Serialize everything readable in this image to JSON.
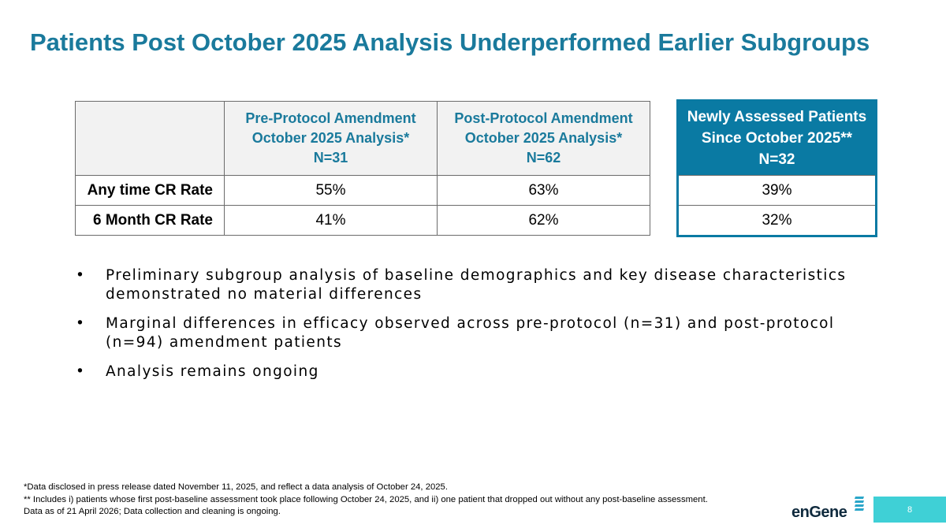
{
  "title": "Patients Post October 2025 Analysis Underperformed Earlier Subgroups",
  "main_table": {
    "headers": [
      {
        "lines": [
          "Pre-Protocol Amendment",
          "October 2025 Analysis*",
          "N=31"
        ]
      },
      {
        "lines": [
          "Post-Protocol Amendment",
          "October 2025 Analysis*",
          "N=62"
        ]
      }
    ],
    "rows": [
      {
        "label": "Any time CR Rate",
        "values": [
          "55%",
          "63%"
        ]
      },
      {
        "label": "6 Month CR Rate",
        "values": [
          "41%",
          "62%"
        ]
      }
    ]
  },
  "side_table": {
    "header_lines": [
      "Newly Assessed Patients",
      "Since October 2025**",
      "N=32"
    ],
    "values": [
      "39%",
      "32%"
    ]
  },
  "bullets": [
    "Preliminary subgroup analysis of baseline demographics and key disease characteristics demonstrated no material differences",
    "Marginal differences in efficacy observed across pre-protocol (n=31) and post-protocol (n=94) amendment patients",
    "Analysis remains ongoing"
  ],
  "bullet_marker": "•",
  "footnotes": [
    "*Data disclosed in press release dated November 11, 2025, and reflect a data analysis of October 24, 2025.",
    "** Includes i) patients whose first post-baseline assessment took place following October 24, 2025, and ii) one patient that dropped out without any post-baseline assessment.",
    "Data as of 21 April 2026; Data collection and cleaning is ongoing."
  ],
  "logo_text": "enGene",
  "page_number": "8",
  "colors": {
    "title": "#1a7a9c",
    "header_bg": "#f2f2f2",
    "side_header_bg": "#0a7aa3",
    "page_box": "#3fd0d6"
  }
}
